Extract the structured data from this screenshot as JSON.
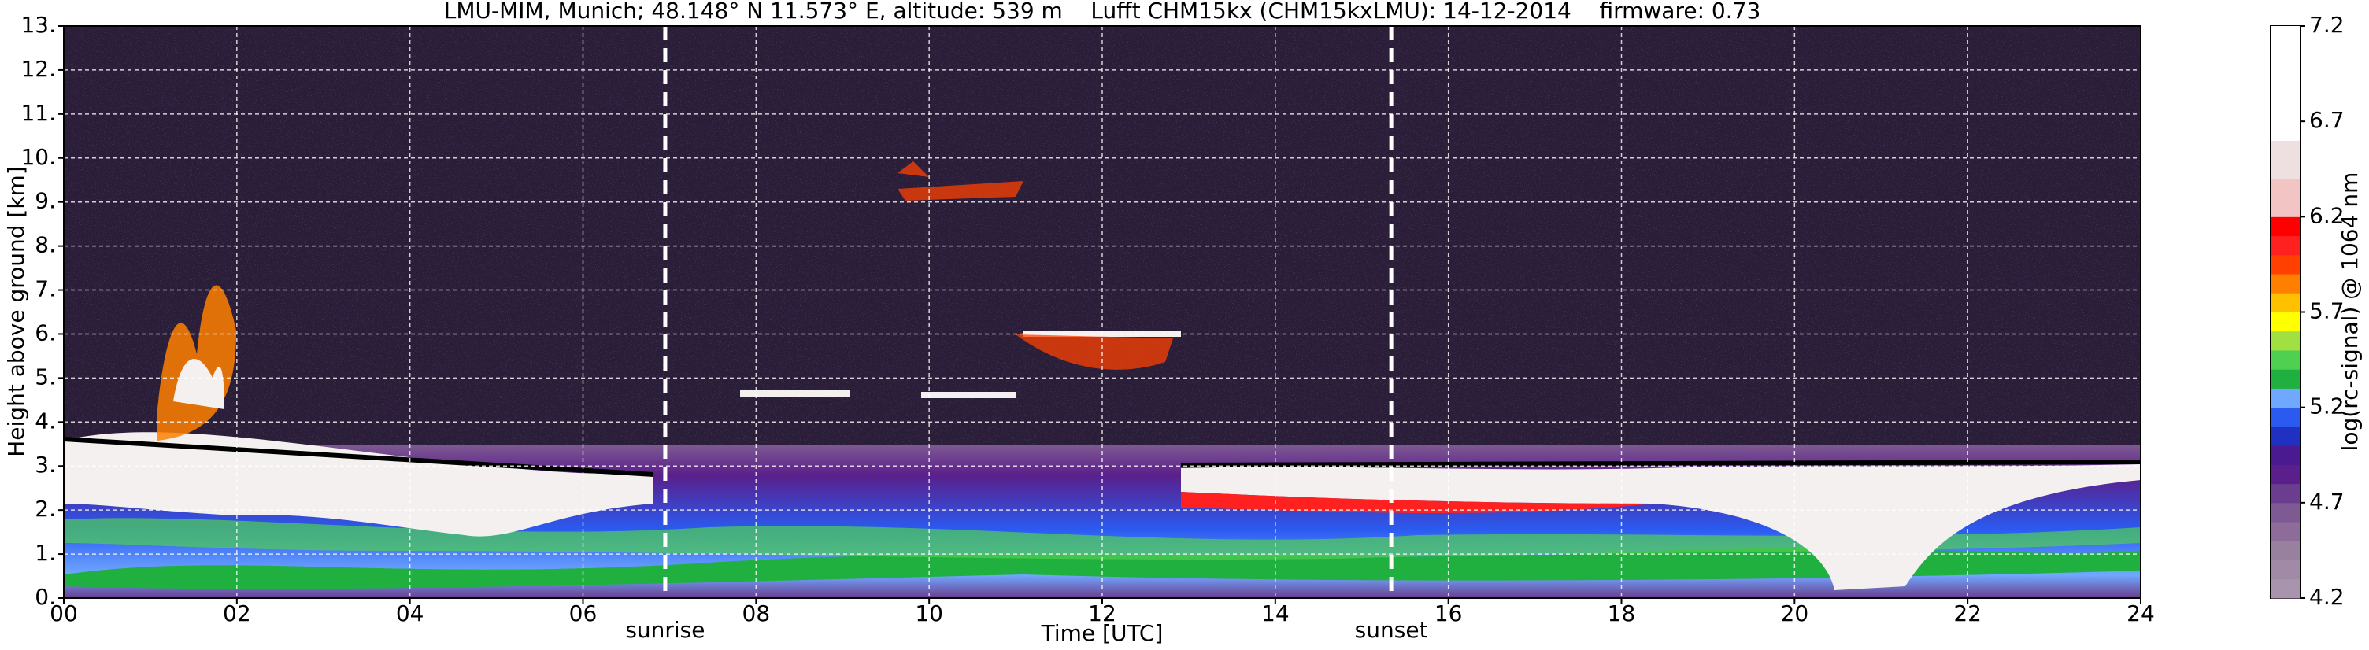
{
  "chart_data": {
    "type": "heatmap",
    "title": "LMU-MIM, Munich; 48.148° N 11.573° E, altitude: 539 m    Lufft CHM15kx (CHM15kxLMU): 14-12-2014    firmware: 0.73",
    "xlabel": "Time [UTC]",
    "ylabel": "Height above ground [km]",
    "xlim": [
      0,
      24
    ],
    "xticks": [
      {
        "value": 0,
        "label": "00"
      },
      {
        "value": 2,
        "label": "02"
      },
      {
        "value": 4,
        "label": "04"
      },
      {
        "value": 6,
        "label": "06"
      },
      {
        "value": 8,
        "label": "08"
      },
      {
        "value": 10,
        "label": "10"
      },
      {
        "value": 12,
        "label": "12"
      },
      {
        "value": 14,
        "label": "14"
      },
      {
        "value": 16,
        "label": "16"
      },
      {
        "value": 18,
        "label": "18"
      },
      {
        "value": 20,
        "label": "20"
      },
      {
        "value": 22,
        "label": "22"
      },
      {
        "value": 24,
        "label": "24"
      }
    ],
    "ylim": [
      0,
      13
    ],
    "yticks": [
      {
        "value": 0,
        "label": "0."
      },
      {
        "value": 1,
        "label": "1."
      },
      {
        "value": 2,
        "label": "2."
      },
      {
        "value": 3,
        "label": "3."
      },
      {
        "value": 4,
        "label": "4."
      },
      {
        "value": 5,
        "label": "5."
      },
      {
        "value": 6,
        "label": "6."
      },
      {
        "value": 7,
        "label": "7."
      },
      {
        "value": 8,
        "label": "8."
      },
      {
        "value": 9,
        "label": "9."
      },
      {
        "value": 10,
        "label": "10."
      },
      {
        "value": 11,
        "label": "11."
      },
      {
        "value": 12,
        "label": "12."
      },
      {
        "value": 13,
        "label": "13."
      }
    ],
    "grid": true,
    "annotations": [
      {
        "label": "sunrise",
        "x": 6.95
      },
      {
        "label": "sunset",
        "x": 15.34
      }
    ],
    "colorbar": {
      "label": "log(rc-signal) @ 1064 nm",
      "clim": [
        4.2,
        7.2
      ],
      "ticks": [
        4.2,
        4.7,
        5.2,
        5.7,
        6.2,
        6.7,
        7.2
      ],
      "colors": [
        "#a894ac",
        "#a08aa6",
        "#98809f",
        "#8e6c9a",
        "#7e5a92",
        "#6a3d8e",
        "#5a1f8a",
        "#4a1a90",
        "#2030c0",
        "#2a5af0",
        "#70a8ff",
        "#20b040",
        "#50d050",
        "#a0e040",
        "#ffff00",
        "#ffc000",
        "#ff8000",
        "#ff4000",
        "#ff2020",
        "#ff0000",
        "#f2c4c4",
        "#f2c4c4",
        "#eedfe0",
        "#eedfe0",
        "#ffffff",
        "#ffffff",
        "#ffffff",
        "#ffffff",
        "#ffffff",
        "#ffffff"
      ]
    }
  }
}
